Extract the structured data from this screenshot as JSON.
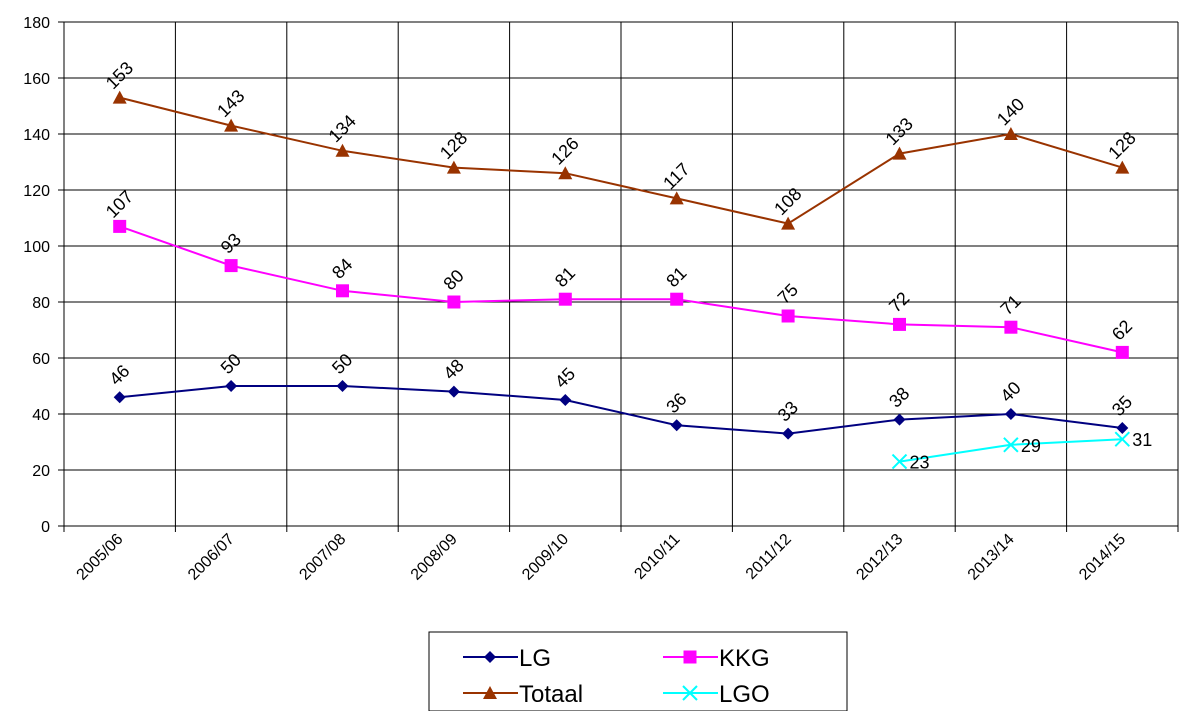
{
  "chart_data": {
    "type": "line",
    "title": "",
    "xlabel": "",
    "ylabel": "",
    "categories": [
      "2005/06",
      "2006/07",
      "2007/08",
      "2008/09",
      "2009/10",
      "2010/11",
      "2011/12",
      "2012/13",
      "2013/14",
      "2014/15"
    ],
    "ylim": [
      0,
      180
    ],
    "yticks": [
      0,
      20,
      40,
      60,
      80,
      100,
      120,
      140,
      160,
      180
    ],
    "grid": "vertical and horizontal",
    "legend_position": "bottom",
    "series": [
      {
        "name": "LG",
        "color": "#000080",
        "marker": "diamond",
        "values": [
          46,
          50,
          50,
          48,
          45,
          36,
          33,
          38,
          40,
          35
        ],
        "label_style": "rotated"
      },
      {
        "name": "KKG",
        "color": "#FF00FF",
        "marker": "square",
        "values": [
          107,
          93,
          84,
          80,
          81,
          81,
          75,
          72,
          71,
          62
        ],
        "label_style": "rotated"
      },
      {
        "name": "Totaal",
        "color": "#993300",
        "marker": "triangle",
        "values": [
          153,
          143,
          134,
          128,
          126,
          117,
          108,
          133,
          140,
          128
        ],
        "label_style": "rotated"
      },
      {
        "name": "LGO",
        "color": "#00FFFF",
        "marker": "x",
        "values": [
          null,
          null,
          null,
          null,
          null,
          null,
          null,
          23,
          29,
          31
        ],
        "label_style": "right"
      }
    ]
  }
}
